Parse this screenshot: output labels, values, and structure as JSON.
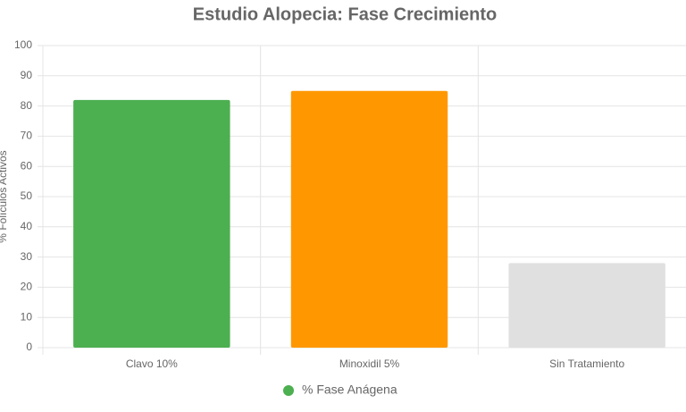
{
  "chart_data": {
    "type": "bar",
    "title": "Estudio Alopecia: Fase Crecimiento",
    "y_label": "% Folículos Activos",
    "categories": [
      "Clavo 10%",
      "Minoxidil 5%",
      "Sin Tratamiento"
    ],
    "series": [
      {
        "name": "% Fase Anágena",
        "color": "#4caf50",
        "values": [
          82,
          85,
          28
        ]
      }
    ],
    "bar_colors": [
      "#4caf50",
      "#ff9800",
      "#e0e0e0"
    ],
    "ylim": [
      0,
      100
    ],
    "yticks": [
      0,
      10,
      20,
      30,
      40,
      50,
      60,
      70,
      80,
      90,
      100
    ],
    "grid": true
  }
}
